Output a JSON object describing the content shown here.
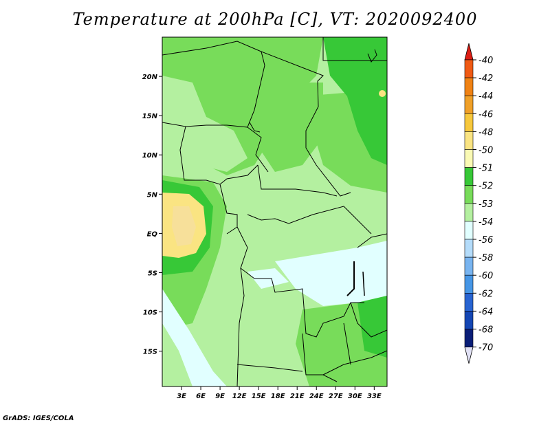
{
  "chart_data": {
    "type": "heatmap",
    "title": "Temperature at 200hPa [C], VT: 2020092400",
    "x_ticks": [
      "3E",
      "6E",
      "9E",
      "12E",
      "15E",
      "18E",
      "21E",
      "24E",
      "27E",
      "30E",
      "33E"
    ],
    "x_tick_values": [
      3,
      6,
      9,
      12,
      15,
      18,
      21,
      24,
      27,
      30,
      33
    ],
    "y_ticks": [
      "20N",
      "15N",
      "10N",
      "5N",
      "EQ",
      "5S",
      "10S",
      "15S"
    ],
    "y_tick_values": [
      20,
      15,
      10,
      5,
      0,
      -5,
      -10,
      -15
    ],
    "xlim": [
      0,
      35
    ],
    "ylim": [
      -19.5,
      25
    ],
    "xlabel": "",
    "ylabel": "",
    "legend": {
      "position": "right",
      "labels": [
        "-40",
        "-42",
        "-44",
        "-46",
        "-48",
        "-50",
        "-51",
        "-52",
        "-53",
        "-54",
        "-56",
        "-58",
        "-60",
        "-62",
        "-64",
        "-68",
        "-70"
      ],
      "colors": [
        "#f03c14",
        "#f05a14",
        "#f08214",
        "#f0a028",
        "#f7c83c",
        "#fae482",
        "#fafab4",
        "#37c837",
        "#78dc5a",
        "#b4f0a0",
        "#e1ffff",
        "#b4dcfa",
        "#78b4f0",
        "#4696e6",
        "#2864d2",
        "#1446b4",
        "#0a1e78",
        "#000050"
      ],
      "under_color": "#000050",
      "over_color": "#dc1e14",
      "end_arrow_top": "#dc1e14",
      "end_arrow_bottom": "#e1e1f5"
    },
    "field_description_levels": [
      "-50",
      "-51",
      "-52",
      "-53",
      "-54"
    ]
  },
  "credit": "GrADS: IGES/COLA"
}
